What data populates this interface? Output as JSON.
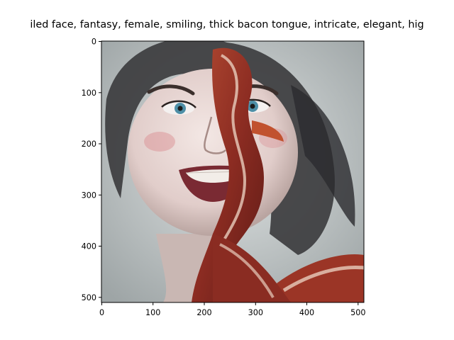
{
  "figure": {
    "title": "...iled face, fantasy, female, smiling, thick bacon tongue, intricate, elegant, hig...",
    "title_visible": "iled face, fantasy, female, smiling, thick bacon tongue, intricate, elegant, hig"
  },
  "axes": {
    "x_ticks": [
      "0",
      "100",
      "200",
      "300",
      "400",
      "500"
    ],
    "y_ticks": [
      "0",
      "100",
      "200",
      "300",
      "400",
      "500"
    ],
    "x_range": [
      0,
      512
    ],
    "y_range": [
      0,
      512
    ]
  },
  "image": {
    "subject": "painted portrait of a smiling woman with a strip of bacon draped over one side of her face and shoulder",
    "colors": {
      "background": "#b6bcbd",
      "skin": "#e6d6d2",
      "hair": "#3a3a3c",
      "bacon": "#8e2f22",
      "bacon_fat": "#e8cdbd",
      "eyes": "#4e8fa7",
      "lips": "#7a2a33"
    }
  }
}
